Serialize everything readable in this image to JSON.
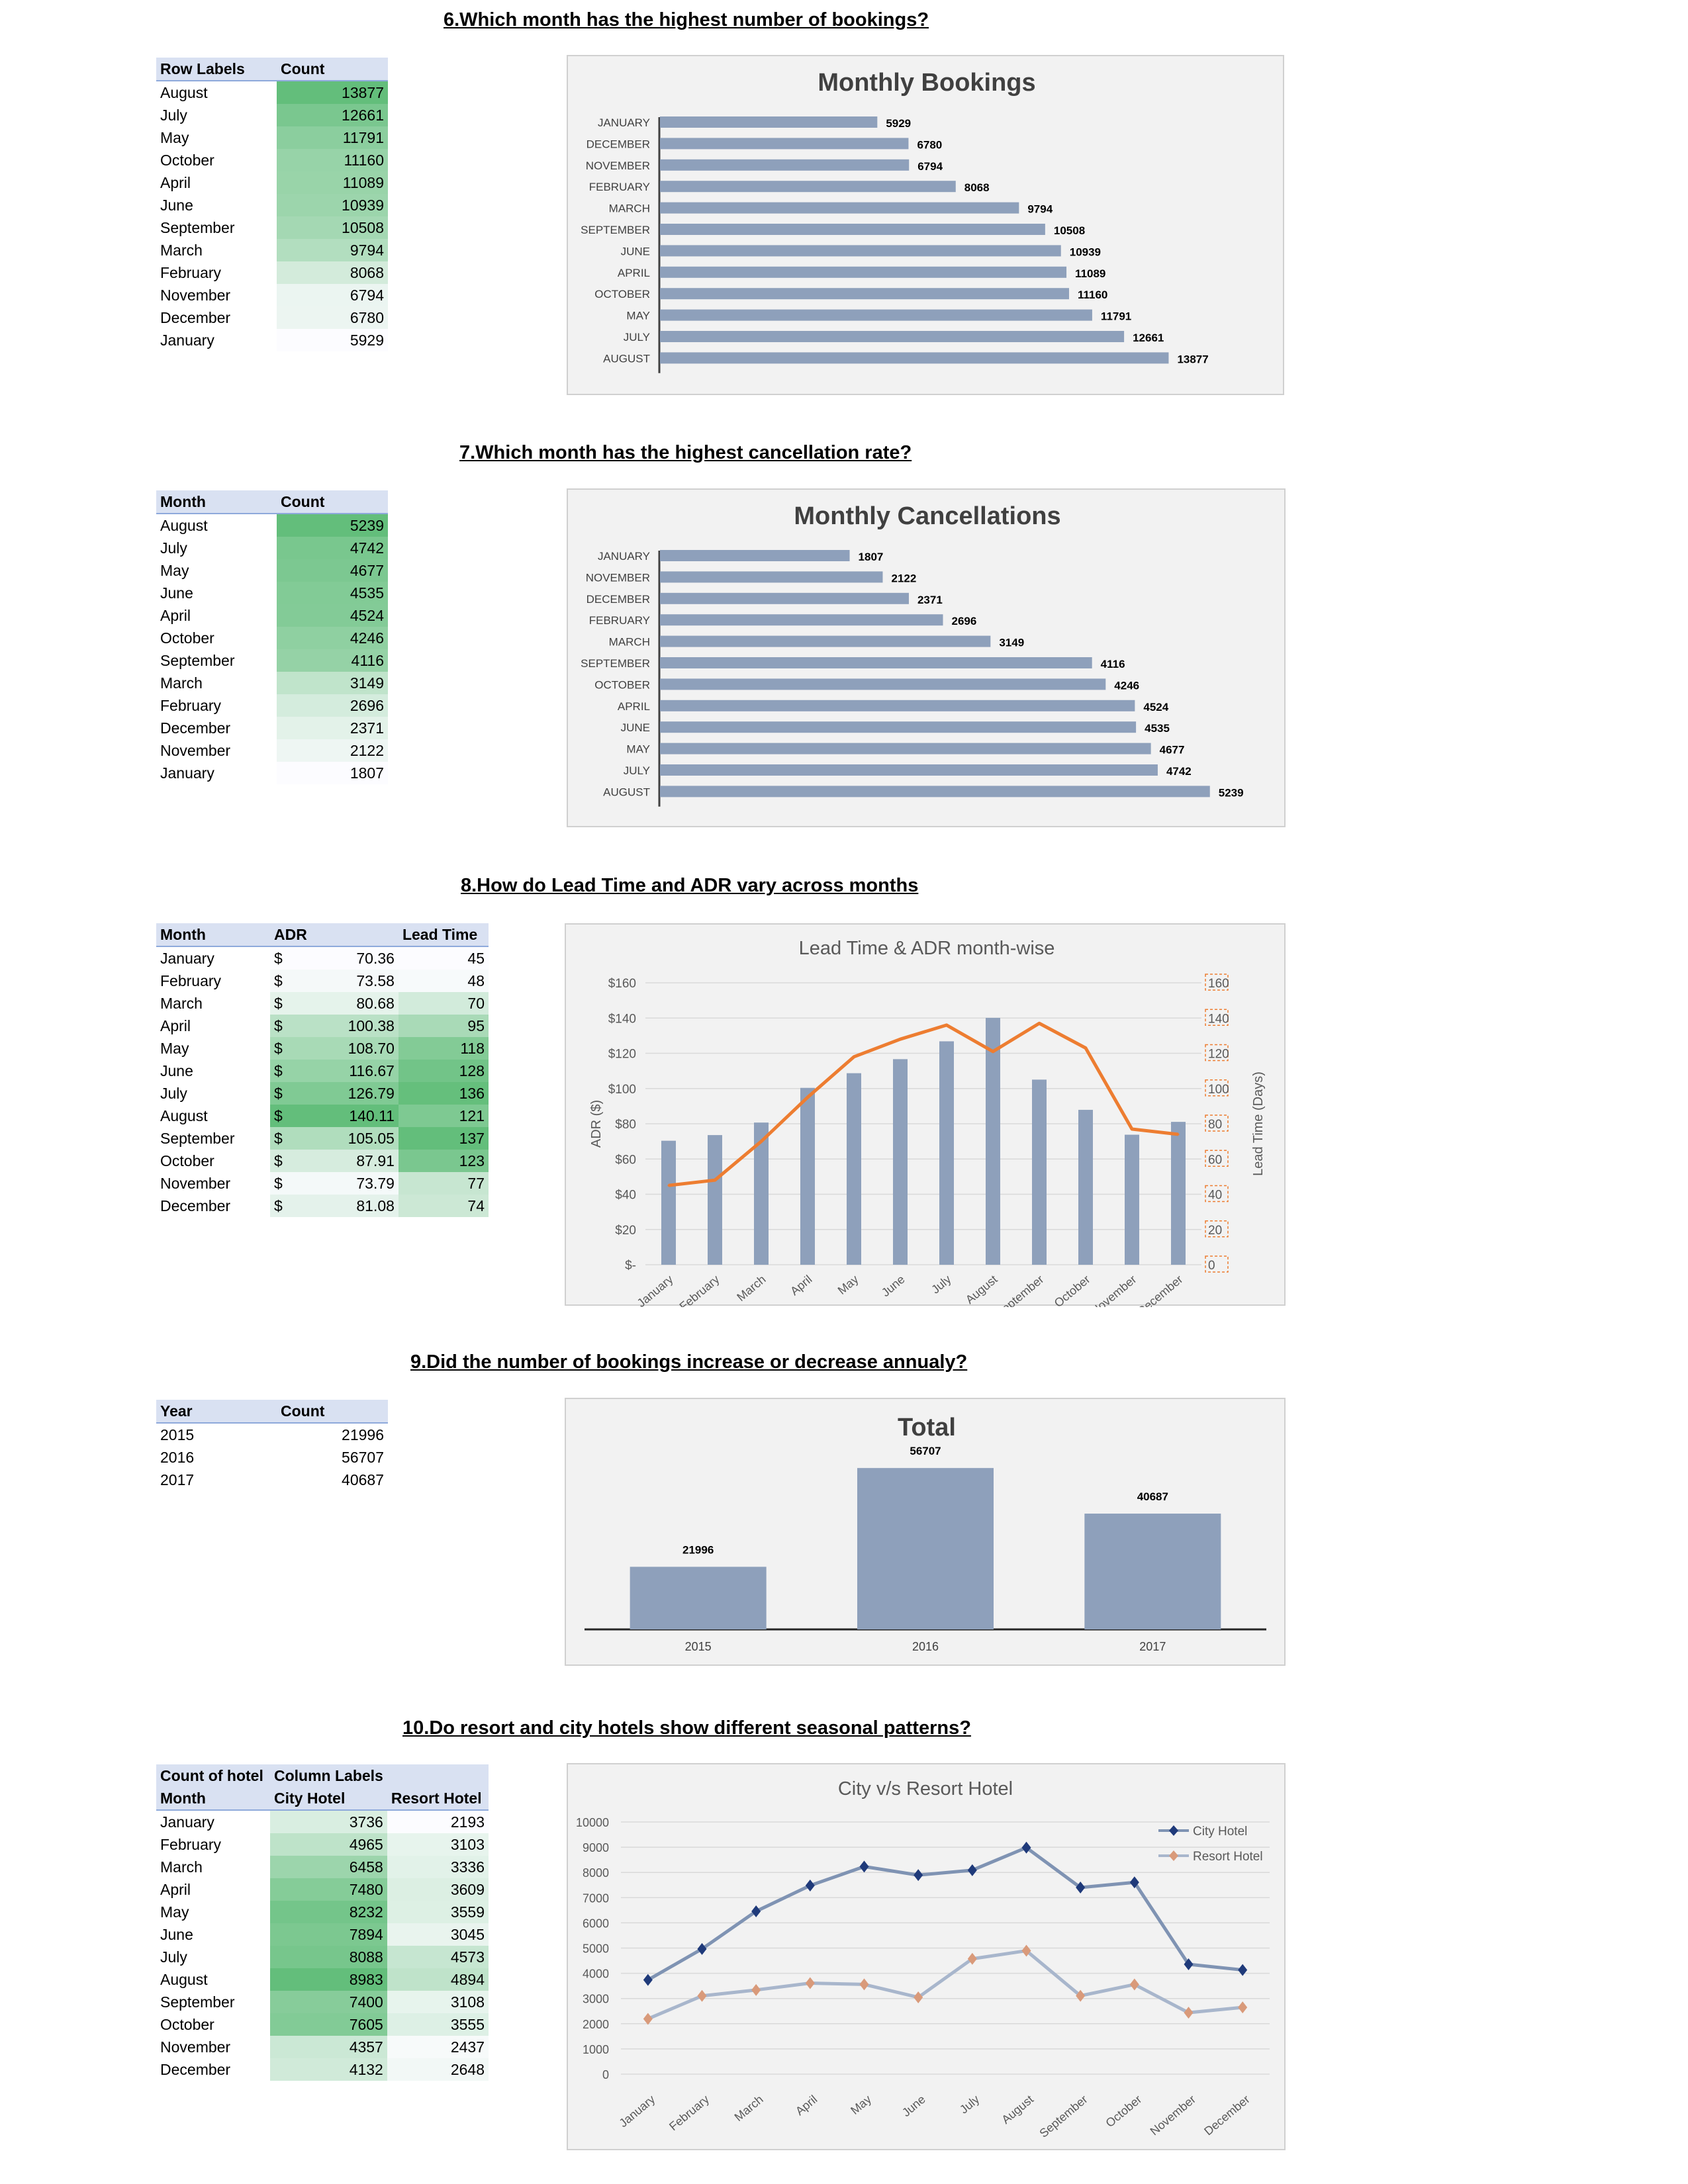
{
  "q6": {
    "title": "6.Which month has the highest number of bookings?",
    "table": {
      "headers": [
        "Row Labels",
        "Count"
      ],
      "rows": [
        [
          "August",
          "13877"
        ],
        [
          "July",
          "12661"
        ],
        [
          "May",
          "11791"
        ],
        [
          "October",
          "11160"
        ],
        [
          "April",
          "11089"
        ],
        [
          "June",
          "10939"
        ],
        [
          "September",
          "10508"
        ],
        [
          "March",
          "9794"
        ],
        [
          "February",
          "8068"
        ],
        [
          "November",
          "6794"
        ],
        [
          "December",
          "6780"
        ],
        [
          "January",
          "5929"
        ]
      ]
    }
  },
  "q7": {
    "title": "7.Which month has the highest cancellation rate?",
    "table": {
      "headers": [
        "Month",
        "Count"
      ],
      "rows": [
        [
          "August",
          "5239"
        ],
        [
          "July",
          "4742"
        ],
        [
          "May",
          "4677"
        ],
        [
          "June",
          "4535"
        ],
        [
          "April",
          "4524"
        ],
        [
          "October",
          "4246"
        ],
        [
          "September",
          "4116"
        ],
        [
          "March",
          "3149"
        ],
        [
          "February",
          "2696"
        ],
        [
          "December",
          "2371"
        ],
        [
          "November",
          "2122"
        ],
        [
          "January",
          "1807"
        ]
      ]
    }
  },
  "q8": {
    "title": "8.How do Lead Time and ADR vary across months",
    "table": {
      "headers": [
        "Month",
        "ADR",
        "Lead Time"
      ],
      "currency": "$",
      "rows": [
        [
          "January",
          "70.36",
          "45"
        ],
        [
          "February",
          "73.58",
          "48"
        ],
        [
          "March",
          "80.68",
          "70"
        ],
        [
          "April",
          "100.38",
          "95"
        ],
        [
          "May",
          "108.70",
          "118"
        ],
        [
          "June",
          "116.67",
          "128"
        ],
        [
          "July",
          "126.79",
          "136"
        ],
        [
          "August",
          "140.11",
          "121"
        ],
        [
          "September",
          "105.05",
          "137"
        ],
        [
          "October",
          "87.91",
          "123"
        ],
        [
          "November",
          "73.79",
          "77"
        ],
        [
          "December",
          "81.08",
          "74"
        ]
      ]
    }
  },
  "q9": {
    "title": "9.Did the number of bookings increase or decrease annualy?",
    "table": {
      "headers": [
        "Year",
        "Count"
      ],
      "rows": [
        [
          "2015",
          "21996"
        ],
        [
          "2016",
          "56707"
        ],
        [
          "2017",
          "40687"
        ]
      ]
    }
  },
  "q10": {
    "title": "10.Do resort and city hotels show different seasonal patterns?",
    "table": {
      "headers1": [
        "Count of hotel",
        "Column Labels",
        ""
      ],
      "headers2": [
        "Month",
        "City Hotel",
        "Resort Hotel"
      ],
      "rows": [
        [
          "January",
          "3736",
          "2193"
        ],
        [
          "February",
          "4965",
          "3103"
        ],
        [
          "March",
          "6458",
          "3336"
        ],
        [
          "April",
          "7480",
          "3609"
        ],
        [
          "May",
          "8232",
          "3559"
        ],
        [
          "June",
          "7894",
          "3045"
        ],
        [
          "July",
          "8088",
          "4573"
        ],
        [
          "August",
          "8983",
          "4894"
        ],
        [
          "September",
          "7400",
          "3108"
        ],
        [
          "October",
          "7605",
          "3555"
        ],
        [
          "November",
          "4357",
          "2437"
        ],
        [
          "December",
          "4132",
          "2648"
        ]
      ]
    }
  },
  "colors": {
    "bar": "#8ea0bb",
    "line_orange": "#ed7d31",
    "city": "#7f93b3",
    "city_marker": "#1f3a7a",
    "resort": "#a8b6cc",
    "resort_marker": "#d99a7a",
    "green_max": "#63be7b"
  },
  "chart_data": [
    {
      "type": "bar",
      "orientation": "horizontal",
      "title": "Monthly Bookings",
      "categories": [
        "JANUARY",
        "DECEMBER",
        "NOVEMBER",
        "FEBRUARY",
        "MARCH",
        "SEPTEMBER",
        "JUNE",
        "APRIL",
        "OCTOBER",
        "MAY",
        "JULY",
        "AUGUST"
      ],
      "values": [
        5929,
        6780,
        6794,
        8068,
        9794,
        10508,
        10939,
        11089,
        11160,
        11791,
        12661,
        13877
      ],
      "xlim": [
        0,
        16000
      ]
    },
    {
      "type": "bar",
      "orientation": "horizontal",
      "title": "Monthly Cancellations",
      "categories": [
        "JANUARY",
        "NOVEMBER",
        "DECEMBER",
        "FEBRUARY",
        "MARCH",
        "SEPTEMBER",
        "OCTOBER",
        "APRIL",
        "JUNE",
        "MAY",
        "JULY",
        "AUGUST"
      ],
      "values": [
        1807,
        2122,
        2371,
        2696,
        3149,
        4116,
        4246,
        4524,
        4535,
        4677,
        4742,
        5239
      ],
      "xlim": [
        0,
        5600
      ]
    },
    {
      "type": "bar+line",
      "title": "Lead Time & ADR month-wise",
      "categories": [
        "January",
        "February",
        "March",
        "April",
        "May",
        "June",
        "July",
        "August",
        "September",
        "October",
        "November",
        "December"
      ],
      "series": [
        {
          "values": [
            70.36,
            73.58,
            80.68,
            100.38,
            108.7,
            116.67,
            126.79,
            140.11,
            105.05,
            87.91,
            73.79,
            81.08
          ]
        },
        {
          "values": [
            45,
            48,
            70,
            95,
            118,
            128,
            136,
            121,
            137,
            123,
            77,
            74
          ]
        }
      ],
      "ylabel": "ADR ($)",
      "y2label": "Lead Time (Days)",
      "yticks": [
        "$-",
        "$20",
        "$40",
        "$60",
        "$80",
        "$100",
        "$120",
        "$140",
        "$160"
      ],
      "y2ticks": [
        "0",
        "20",
        "40",
        "60",
        "80",
        "100",
        "120",
        "140",
        "160"
      ],
      "ylim": [
        0,
        160
      ],
      "y2lim": [
        0,
        160
      ],
      "grid": true
    },
    {
      "type": "bar",
      "title": "Total",
      "categories": [
        "2015",
        "2016",
        "2017"
      ],
      "values": [
        21996,
        56707,
        40687
      ],
      "ylim": [
        0,
        60000
      ]
    },
    {
      "type": "line",
      "title": "City v/s Resort Hotel",
      "categories": [
        "January",
        "February",
        "March",
        "April",
        "May",
        "June",
        "July",
        "August",
        "September",
        "October",
        "November",
        "December"
      ],
      "series": [
        {
          "name": "City Hotel",
          "values": [
            3736,
            4965,
            6458,
            7480,
            8232,
            7894,
            8088,
            8983,
            7400,
            7605,
            4357,
            4132
          ]
        },
        {
          "name": "Resort Hotel",
          "values": [
            2193,
            3103,
            3336,
            3609,
            3559,
            3045,
            4573,
            4894,
            3108,
            3555,
            2437,
            2648
          ]
        }
      ],
      "ylim": [
        0,
        10000
      ],
      "yticks": [
        "0",
        "1000",
        "2000",
        "3000",
        "4000",
        "5000",
        "6000",
        "7000",
        "8000",
        "9000",
        "10000"
      ],
      "legend": "right",
      "grid": true
    }
  ]
}
